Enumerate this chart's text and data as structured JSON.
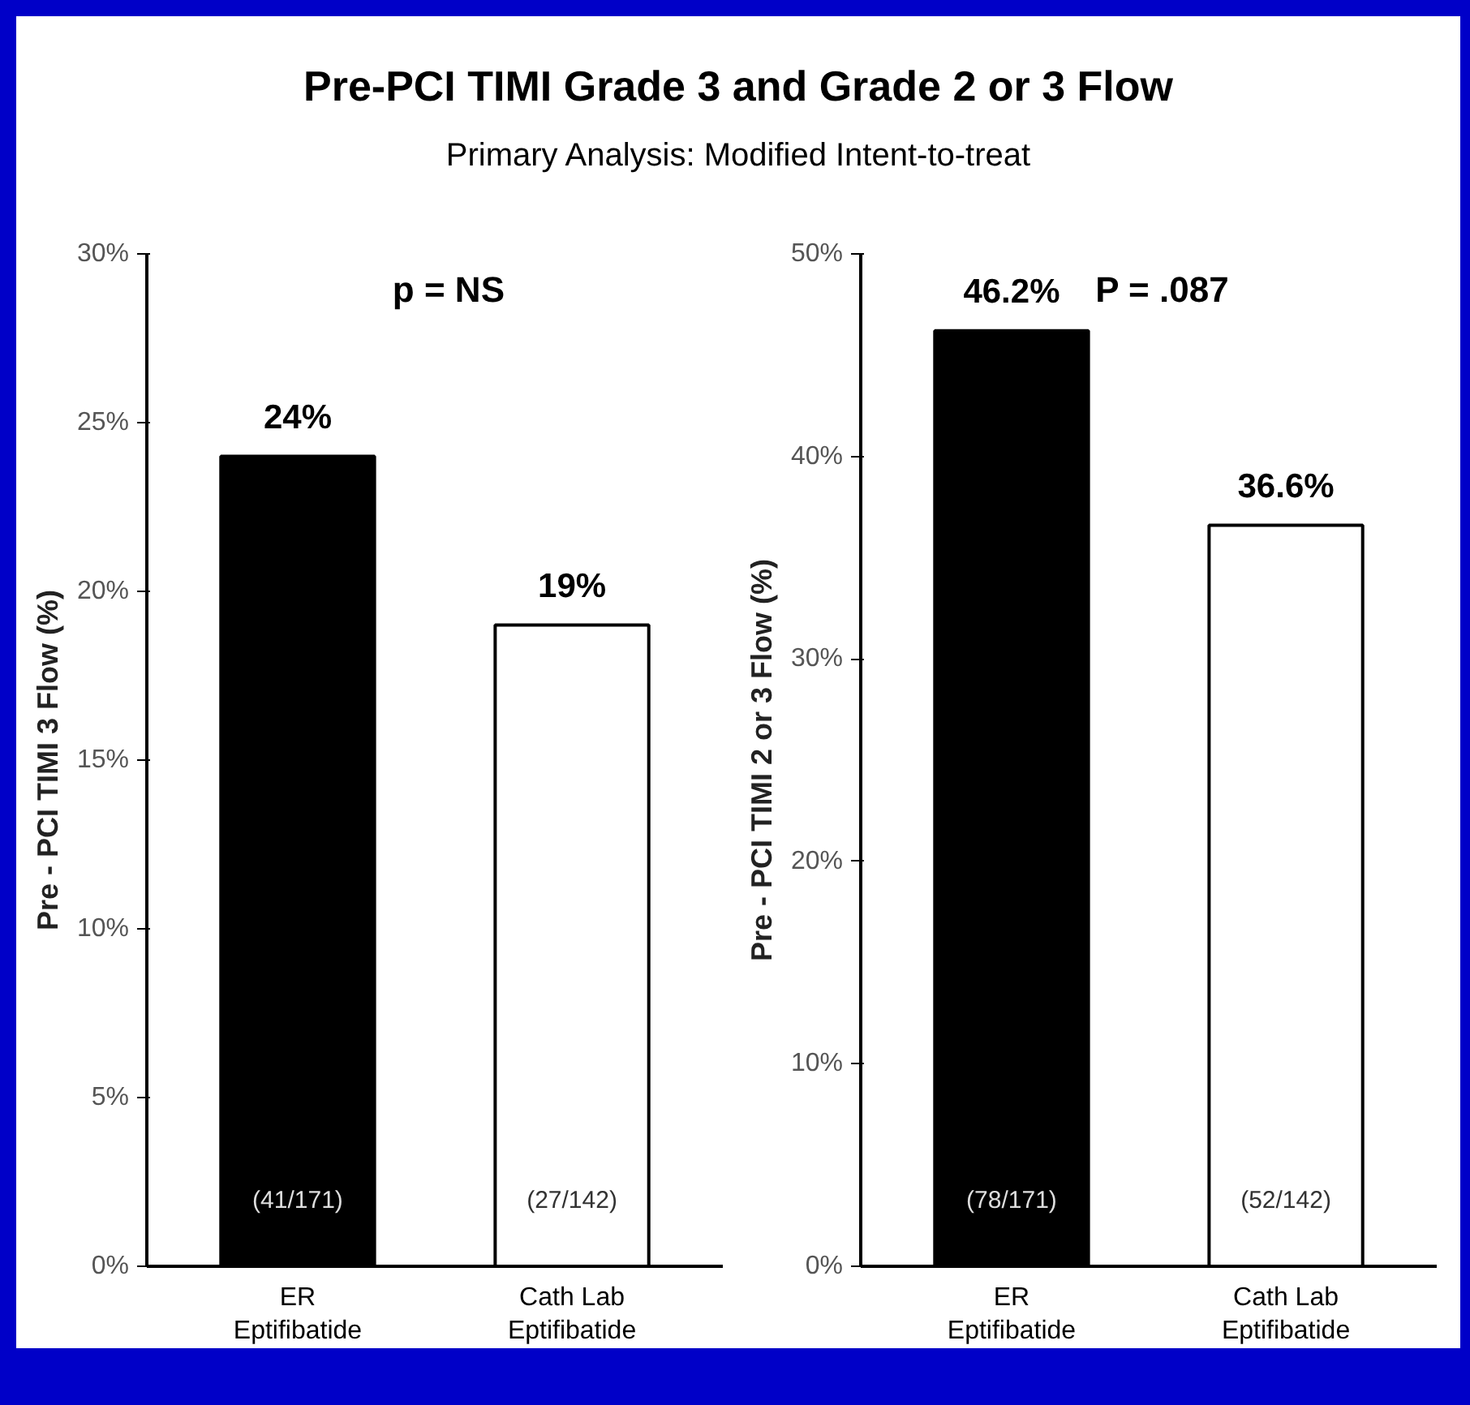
{
  "chart_data": [
    {
      "type": "bar",
      "title": "Pre-PCI TIMI Grade 3 and Grade 2 or 3 Flow",
      "subtitle": "Primary Analysis: Modified Intent-to-treat",
      "ylabel": "Pre - PCI TIMI 3 Flow (%)",
      "categories": [
        "ER\nEptifibatide",
        "Cath Lab\nEptifibatide"
      ],
      "values": [
        24,
        19
      ],
      "colors": [
        "#000000",
        "#ffffff"
      ],
      "value_labels": [
        "24%",
        "19%"
      ],
      "ylim": [
        0,
        30
      ],
      "yticks": [
        {
          "value": 0,
          "label": "0%"
        },
        {
          "value": 5,
          "label": "5%"
        },
        {
          "value": 10,
          "label": "10%"
        },
        {
          "value": 15,
          "label": "15%"
        },
        {
          "value": 20,
          "label": "20%"
        },
        {
          "value": 25,
          "label": "25%"
        },
        {
          "value": 30,
          "label": "30%"
        }
      ],
      "grid": false,
      "annotations": [
        "p = NS",
        "(41/171)",
        "(27/142)"
      ]
    },
    {
      "type": "bar",
      "ylabel": "Pre - PCI TIMI 2 or 3 Flow (%)",
      "categories": [
        "ER\nEptifibatide",
        "Cath Lab\nEptifibatide"
      ],
      "values": [
        46.2,
        36.6
      ],
      "colors": [
        "#000000",
        "#ffffff"
      ],
      "value_labels": [
        "46.2%",
        "36.6%"
      ],
      "ylim": [
        0,
        50
      ],
      "yticks": [
        {
          "value": 0,
          "label": "0%"
        },
        {
          "value": 10,
          "label": "10%"
        },
        {
          "value": 20,
          "label": "20%"
        },
        {
          "value": 30,
          "label": "30%"
        },
        {
          "value": 40,
          "label": "40%"
        },
        {
          "value": 50,
          "label": "50%"
        }
      ],
      "grid": false,
      "annotations": [
        "P = .087",
        "(78/171)",
        "(52/142)"
      ]
    }
  ]
}
